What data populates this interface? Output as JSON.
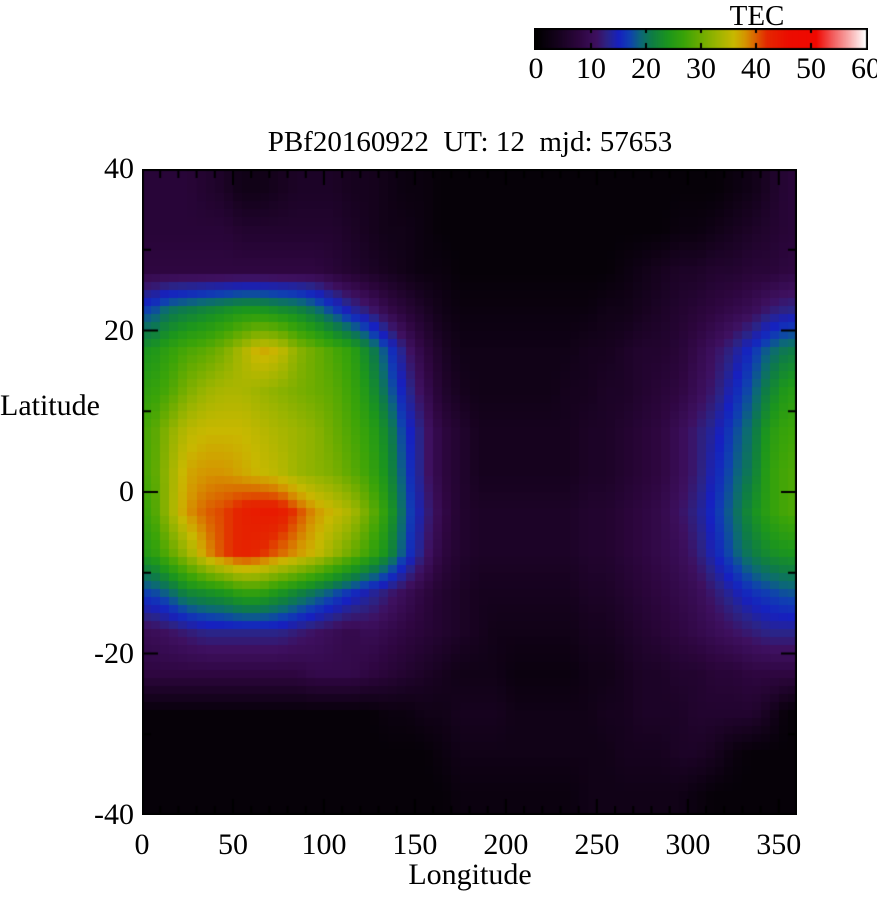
{
  "colorbar": {
    "title": "TEC",
    "min": 0,
    "max": 60,
    "tick_labels": [
      "0",
      "10",
      "20",
      "30",
      "40",
      "50",
      "60"
    ],
    "tick_values": [
      0,
      10,
      20,
      30,
      40,
      50,
      60
    ],
    "minor_tick_values": [
      10,
      20,
      30,
      40,
      50
    ]
  },
  "plot": {
    "title": "PBf20160922  UT: 12  mjd: 57653",
    "x_axis": {
      "label": "Longitude",
      "min": 0,
      "max": 360,
      "major_ticks": [
        0,
        50,
        100,
        150,
        200,
        250,
        300,
        350
      ],
      "minor_step": 10
    },
    "y_axis": {
      "label": "Latitude",
      "min": -40,
      "max": 40,
      "major_ticks": [
        40,
        20,
        0,
        -20,
        -40
      ],
      "minor_step": 10
    }
  },
  "chart_data": {
    "type": "heatmap",
    "title": "PBf20160922  UT: 12  mjd: 57653",
    "xlabel": "Longitude",
    "ylabel": "Latitude",
    "colorbar_label": "TEC",
    "xlim": [
      0,
      360
    ],
    "ylim": [
      -40,
      40
    ],
    "clim": [
      0,
      60
    ],
    "lon_centers": [
      5,
      15,
      25,
      35,
      45,
      55,
      65,
      75,
      85,
      95,
      105,
      115,
      125,
      135,
      145,
      155,
      165,
      175,
      185,
      195,
      205,
      215,
      225,
      235,
      245,
      255,
      265,
      275,
      285,
      295,
      305,
      315,
      325,
      335,
      345,
      355
    ],
    "lat_centers": [
      37.5,
      32.5,
      27.5,
      22.5,
      17.5,
      12.5,
      7.5,
      2.5,
      -2.5,
      -7.5,
      -12.5,
      -17.5,
      -22.5,
      -27.5,
      -32.5,
      -37.5
    ],
    "values": [
      [
        7,
        7,
        7,
        6,
        5,
        3,
        3,
        4,
        5,
        5,
        5,
        4,
        4,
        3,
        2,
        2,
        1,
        1,
        1,
        1,
        1,
        1,
        1,
        1,
        1,
        1,
        1,
        1,
        1,
        1,
        1,
        1,
        2,
        3,
        5,
        7
      ],
      [
        7,
        7,
        7,
        7,
        7,
        6,
        6,
        6,
        6,
        6,
        6,
        5,
        4,
        3,
        3,
        2,
        1,
        1,
        1,
        1,
        1,
        1,
        1,
        1,
        1,
        1,
        1,
        1,
        1,
        2,
        2,
        3,
        4,
        5,
        6,
        7
      ],
      [
        8,
        8,
        8,
        8,
        8,
        8,
        8,
        8,
        8,
        8,
        7,
        6,
        5,
        4,
        3,
        2,
        2,
        1,
        1,
        1,
        1,
        1,
        1,
        1,
        1,
        1,
        2,
        3,
        4,
        5,
        5,
        6,
        6,
        7,
        7,
        8
      ],
      [
        17,
        20,
        21,
        22,
        23,
        24,
        24,
        23,
        22,
        20,
        17,
        14,
        12,
        9,
        7,
        5,
        3,
        2,
        2,
        2,
        2,
        2,
        2,
        2,
        2,
        3,
        3,
        4,
        5,
        6,
        7,
        8,
        9,
        10,
        12,
        13
      ],
      [
        24,
        26,
        28,
        29,
        31,
        34,
        37,
        36,
        32,
        30,
        28,
        26,
        22,
        17,
        12,
        8,
        5,
        3,
        3,
        3,
        3,
        3,
        3,
        3,
        4,
        4,
        5,
        6,
        6,
        7,
        9,
        11,
        13,
        16,
        19,
        21
      ],
      [
        26,
        28,
        31,
        33,
        34,
        34,
        33,
        32,
        31,
        30,
        29,
        27,
        24,
        19,
        14,
        10,
        6,
        4,
        3,
        3,
        3,
        3,
        3,
        4,
        4,
        5,
        5,
        6,
        7,
        8,
        10,
        12,
        15,
        18,
        22,
        25
      ],
      [
        28,
        32,
        35,
        36,
        36,
        36,
        35,
        34,
        33,
        32,
        30,
        28,
        26,
        22,
        16,
        12,
        8,
        6,
        4,
        4,
        4,
        4,
        4,
        4,
        5,
        5,
        6,
        7,
        8,
        10,
        12,
        14,
        17,
        20,
        25,
        27
      ],
      [
        28,
        33,
        37,
        38,
        38,
        37,
        36,
        35,
        33,
        32,
        31,
        29,
        27,
        23,
        17,
        12,
        8,
        6,
        4,
        4,
        4,
        4,
        4,
        4,
        5,
        5,
        6,
        7,
        8,
        10,
        12,
        15,
        18,
        21,
        26,
        28
      ],
      [
        27,
        33,
        38,
        40,
        41,
        43,
        44,
        44,
        41,
        38,
        36,
        34,
        30,
        25,
        18,
        13,
        9,
        6,
        5,
        5,
        5,
        5,
        5,
        5,
        6,
        6,
        7,
        8,
        9,
        11,
        13,
        16,
        19,
        23,
        26,
        28
      ],
      [
        25,
        29,
        33,
        38,
        41,
        43,
        42,
        40,
        38,
        36,
        33,
        30,
        27,
        23,
        17,
        12,
        8,
        6,
        5,
        5,
        5,
        5,
        5,
        5,
        6,
        6,
        7,
        8,
        9,
        10,
        12,
        15,
        18,
        21,
        23,
        24
      ],
      [
        17,
        19,
        22,
        23,
        24,
        26,
        26,
        24,
        22,
        20,
        18,
        16,
        14,
        12,
        10,
        8,
        6,
        5,
        4,
        4,
        4,
        4,
        4,
        4,
        5,
        5,
        6,
        7,
        8,
        9,
        10,
        12,
        14,
        16,
        17,
        18
      ],
      [
        10,
        11,
        12,
        13,
        13,
        13,
        13,
        13,
        12,
        11,
        10,
        9,
        10,
        9,
        8,
        7,
        6,
        5,
        4,
        3,
        3,
        3,
        3,
        3,
        4,
        4,
        5,
        6,
        7,
        8,
        9,
        10,
        11,
        12,
        13,
        13
      ],
      [
        8,
        8,
        8,
        8,
        8,
        8,
        8,
        8,
        8,
        9,
        9,
        9,
        8,
        7,
        6,
        5,
        4,
        3,
        3,
        3,
        2,
        2,
        2,
        2,
        3,
        3,
        4,
        5,
        5,
        6,
        6,
        7,
        7,
        8,
        8,
        8
      ],
      [
        1,
        1,
        1,
        1,
        1,
        1,
        1,
        1,
        1,
        1,
        1,
        1,
        1,
        2,
        2,
        3,
        3,
        4,
        4,
        4,
        3,
        3,
        3,
        3,
        3,
        4,
        4,
        5,
        5,
        5,
        6,
        6,
        6,
        6,
        4,
        1
      ],
      [
        1,
        1,
        1,
        1,
        1,
        1,
        1,
        1,
        1,
        1,
        1,
        1,
        1,
        1,
        1,
        1,
        2,
        3,
        3,
        3,
        3,
        3,
        3,
        3,
        3,
        3,
        4,
        4,
        4,
        5,
        5,
        4,
        2,
        1,
        1,
        1
      ],
      [
        1,
        1,
        1,
        1,
        1,
        1,
        1,
        1,
        1,
        1,
        1,
        1,
        1,
        1,
        1,
        1,
        1,
        2,
        2,
        2,
        2,
        2,
        2,
        2,
        3,
        3,
        3,
        3,
        3,
        3,
        2,
        1,
        1,
        1,
        1,
        1
      ]
    ],
    "colormap_stops": [
      [
        0,
        "#000000"
      ],
      [
        4,
        "#16021e"
      ],
      [
        8,
        "#2e0640"
      ],
      [
        11,
        "#3e1060"
      ],
      [
        13,
        "#2a2488"
      ],
      [
        15,
        "#1620c0"
      ],
      [
        17,
        "#0f40b0"
      ],
      [
        19,
        "#0c6878"
      ],
      [
        21,
        "#0e7c46"
      ],
      [
        24,
        "#1c961c"
      ],
      [
        27,
        "#3ba408"
      ],
      [
        30,
        "#6cac00"
      ],
      [
        33,
        "#9cb400"
      ],
      [
        36,
        "#c8b800"
      ],
      [
        38,
        "#d49600"
      ],
      [
        40,
        "#dc6000"
      ],
      [
        42,
        "#e42800"
      ],
      [
        46,
        "#ec0c00"
      ],
      [
        51,
        "#f00800"
      ],
      [
        54,
        "#f25c5c"
      ],
      [
        57,
        "#f8aaaa"
      ],
      [
        60,
        "#ffffff"
      ]
    ],
    "grid": false,
    "legend": "colorbar-top-right"
  }
}
